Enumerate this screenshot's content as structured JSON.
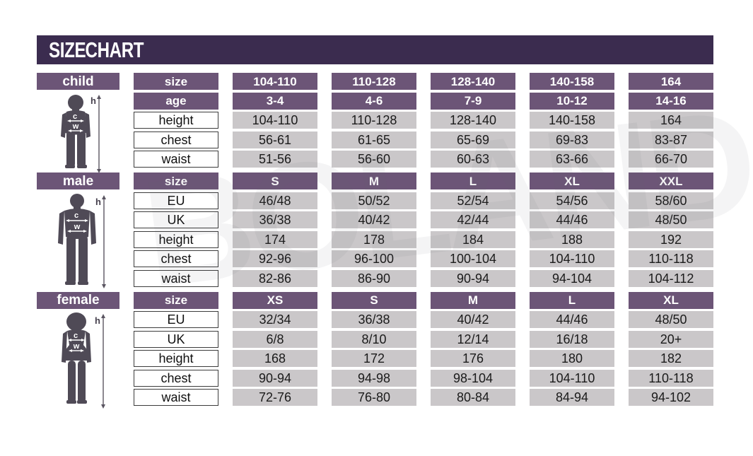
{
  "title": "SIZE CHART",
  "watermark_text": "BOLAND",
  "colors": {
    "title_bar": "#3b2c4f",
    "header_purple": "#6c5577",
    "cell_gray": "#cac7c9",
    "label_border": "#3c3c3c",
    "silhouette": "#4f4a56"
  },
  "figure_annotations": {
    "height": "h",
    "chest": "c",
    "waist": "w"
  },
  "chart_data": [
    {
      "type": "table",
      "section": "child",
      "rows": [
        {
          "label": "size",
          "kind": "header",
          "values": [
            "104-110",
            "110-128",
            "128-140",
            "140-158",
            "164"
          ]
        },
        {
          "label": "age",
          "kind": "header",
          "values": [
            "3-4",
            "4-6",
            "7-9",
            "10-12",
            "14-16"
          ]
        },
        {
          "label": "height",
          "kind": "data",
          "values": [
            "104-110",
            "110-128",
            "128-140",
            "140-158",
            "164"
          ]
        },
        {
          "label": "chest",
          "kind": "data",
          "values": [
            "56-61",
            "61-65",
            "65-69",
            "69-83",
            "83-87"
          ]
        },
        {
          "label": "waist",
          "kind": "data",
          "values": [
            "51-56",
            "56-60",
            "60-63",
            "63-66",
            "66-70"
          ]
        }
      ]
    },
    {
      "type": "table",
      "section": "male",
      "rows": [
        {
          "label": "size",
          "kind": "header",
          "values": [
            "S",
            "M",
            "L",
            "XL",
            "XXL"
          ]
        },
        {
          "label": "EU",
          "kind": "data",
          "values": [
            "46/48",
            "50/52",
            "52/54",
            "54/56",
            "58/60"
          ]
        },
        {
          "label": "UK",
          "kind": "data",
          "values": [
            "36/38",
            "40/42",
            "42/44",
            "44/46",
            "48/50"
          ]
        },
        {
          "label": "height",
          "kind": "data",
          "values": [
            "174",
            "178",
            "184",
            "188",
            "192"
          ]
        },
        {
          "label": "chest",
          "kind": "data",
          "values": [
            "92-96",
            "96-100",
            "100-104",
            "104-110",
            "110-118"
          ]
        },
        {
          "label": "waist",
          "kind": "data",
          "values": [
            "82-86",
            "86-90",
            "90-94",
            "94-104",
            "104-112"
          ]
        }
      ]
    },
    {
      "type": "table",
      "section": "female",
      "rows": [
        {
          "label": "size",
          "kind": "header",
          "values": [
            "XS",
            "S",
            "M",
            "L",
            "XL"
          ]
        },
        {
          "label": "EU",
          "kind": "data",
          "values": [
            "32/34",
            "36/38",
            "40/42",
            "44/46",
            "48/50"
          ]
        },
        {
          "label": "UK",
          "kind": "data",
          "values": [
            "6/8",
            "8/10",
            "12/14",
            "16/18",
            "20+"
          ]
        },
        {
          "label": "height",
          "kind": "data",
          "values": [
            "168",
            "172",
            "176",
            "180",
            "182"
          ]
        },
        {
          "label": "chest",
          "kind": "data",
          "values": [
            "90-94",
            "94-98",
            "98-104",
            "104-110",
            "110-118"
          ]
        },
        {
          "label": "waist",
          "kind": "data",
          "values": [
            "72-76",
            "76-80",
            "80-84",
            "84-94",
            "94-102"
          ]
        }
      ]
    }
  ]
}
